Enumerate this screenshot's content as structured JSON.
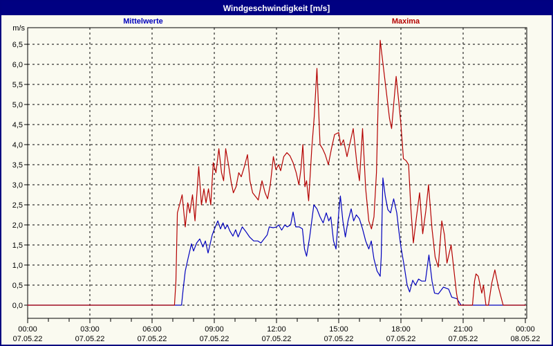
{
  "window": {
    "title": "Windgeschwindigkeit [m/s]"
  },
  "chart_data": {
    "type": "line",
    "title": "Windgeschwindigkeit [m/s]",
    "y_unit_label": "m/s",
    "ylim": [
      -0.33,
      6.93
    ],
    "xlim_hours": [
      0,
      24
    ],
    "grid": "dashed-black",
    "plot_bg": "#fafaf0",
    "axis_color": "#000000",
    "y_ticks": [
      {
        "value": 0.0,
        "label": "0,0"
      },
      {
        "value": 0.5,
        "label": "0,5"
      },
      {
        "value": 1.0,
        "label": "1,0"
      },
      {
        "value": 1.5,
        "label": "1,5"
      },
      {
        "value": 2.0,
        "label": "2,0"
      },
      {
        "value": 2.5,
        "label": "2,5"
      },
      {
        "value": 3.0,
        "label": "3,0"
      },
      {
        "value": 3.5,
        "label": "3,5"
      },
      {
        "value": 4.0,
        "label": "4,0"
      },
      {
        "value": 4.5,
        "label": "4,5"
      },
      {
        "value": 5.0,
        "label": "5,0"
      },
      {
        "value": 5.5,
        "label": "5,5"
      },
      {
        "value": 6.0,
        "label": "6,0"
      },
      {
        "value": 6.5,
        "label": "6,5"
      }
    ],
    "x_ticks": [
      {
        "hour": 0,
        "time": "00:00",
        "date": "07.05.22"
      },
      {
        "hour": 3,
        "time": "03:00",
        "date": "07.05.22"
      },
      {
        "hour": 6,
        "time": "06:00",
        "date": "07.05.22"
      },
      {
        "hour": 9,
        "time": "09:00",
        "date": "07.05.22"
      },
      {
        "hour": 12,
        "time": "12:00",
        "date": "07.05.22"
      },
      {
        "hour": 15,
        "time": "15:00",
        "date": "07.05.22"
      },
      {
        "hour": 18,
        "time": "18:00",
        "date": "07.05.22"
      },
      {
        "hour": 21,
        "time": "21:00",
        "date": "07.05.22"
      },
      {
        "hour": 24,
        "time": "00:00",
        "date": "08.05.22"
      }
    ],
    "x_minor_tick_every_hours": 1,
    "legend": [
      {
        "name": "Mittelwerte",
        "color": "#0000bd"
      },
      {
        "name": "Maxima",
        "color": "#b40000"
      }
    ],
    "series": [
      {
        "name": "Mittelwerte",
        "color": "#0000bd",
        "points": [
          [
            0,
            0
          ],
          [
            7.42,
            0
          ],
          [
            7.5,
            0.4
          ],
          [
            7.6,
            0.85
          ],
          [
            7.75,
            1.2
          ],
          [
            7.9,
            1.53
          ],
          [
            8.0,
            1.35
          ],
          [
            8.15,
            1.55
          ],
          [
            8.3,
            1.65
          ],
          [
            8.45,
            1.45
          ],
          [
            8.57,
            1.6
          ],
          [
            8.7,
            1.3
          ],
          [
            8.9,
            1.75
          ],
          [
            9.05,
            1.95
          ],
          [
            9.17,
            2.1
          ],
          [
            9.3,
            1.9
          ],
          [
            9.42,
            2.05
          ],
          [
            9.52,
            1.9
          ],
          [
            9.63,
            2.0
          ],
          [
            9.75,
            1.85
          ],
          [
            9.9,
            1.72
          ],
          [
            10.03,
            1.88
          ],
          [
            10.15,
            1.7
          ],
          [
            10.35,
            1.95
          ],
          [
            10.5,
            1.85
          ],
          [
            10.7,
            1.7
          ],
          [
            10.9,
            1.6
          ],
          [
            11.1,
            1.6
          ],
          [
            11.25,
            1.55
          ],
          [
            11.4,
            1.65
          ],
          [
            11.55,
            1.75
          ],
          [
            11.65,
            1.95
          ],
          [
            11.85,
            1.93
          ],
          [
            12.0,
            1.95
          ],
          [
            12.1,
            2.0
          ],
          [
            12.25,
            1.87
          ],
          [
            12.4,
            2.0
          ],
          [
            12.52,
            1.95
          ],
          [
            12.68,
            2.0
          ],
          [
            12.8,
            2.32
          ],
          [
            12.93,
            1.95
          ],
          [
            13.1,
            1.95
          ],
          [
            13.25,
            1.9
          ],
          [
            13.35,
            1.4
          ],
          [
            13.45,
            1.22
          ],
          [
            13.6,
            1.7
          ],
          [
            13.8,
            2.5
          ],
          [
            13.95,
            2.4
          ],
          [
            14.1,
            2.2
          ],
          [
            14.25,
            2.05
          ],
          [
            14.4,
            2.3
          ],
          [
            14.52,
            2.1
          ],
          [
            14.62,
            2.2
          ],
          [
            14.75,
            1.6
          ],
          [
            14.87,
            1.4
          ],
          [
            15.0,
            2.3
          ],
          [
            15.08,
            2.72
          ],
          [
            15.2,
            2.1
          ],
          [
            15.32,
            1.7
          ],
          [
            15.45,
            2.1
          ],
          [
            15.6,
            2.4
          ],
          [
            15.72,
            2.1
          ],
          [
            15.85,
            2.25
          ],
          [
            16.0,
            2.15
          ],
          [
            16.15,
            1.9
          ],
          [
            16.3,
            1.6
          ],
          [
            16.45,
            1.4
          ],
          [
            16.57,
            1.6
          ],
          [
            16.7,
            1.15
          ],
          [
            16.85,
            0.85
          ],
          [
            17.0,
            0.72
          ],
          [
            17.05,
            1.2
          ],
          [
            17.13,
            3.17
          ],
          [
            17.25,
            2.7
          ],
          [
            17.37,
            2.38
          ],
          [
            17.5,
            2.3
          ],
          [
            17.65,
            2.65
          ],
          [
            17.8,
            2.3
          ],
          [
            17.9,
            1.85
          ],
          [
            18.0,
            1.45
          ],
          [
            18.15,
            1.0
          ],
          [
            18.3,
            0.5
          ],
          [
            18.42,
            0.33
          ],
          [
            18.57,
            0.62
          ],
          [
            18.7,
            0.5
          ],
          [
            18.85,
            0.65
          ],
          [
            19.0,
            0.6
          ],
          [
            19.18,
            0.6
          ],
          [
            19.35,
            1.25
          ],
          [
            19.5,
            0.6
          ],
          [
            19.62,
            0.3
          ],
          [
            19.8,
            0.28
          ],
          [
            20.05,
            0.45
          ],
          [
            20.3,
            0.4
          ],
          [
            20.45,
            0.2
          ],
          [
            20.7,
            0.16
          ],
          [
            20.9,
            0
          ],
          [
            24,
            0
          ]
        ]
      },
      {
        "name": "Maxima",
        "color": "#b40000",
        "points": [
          [
            0,
            0
          ],
          [
            7.08,
            0
          ],
          [
            7.15,
            0.6
          ],
          [
            7.22,
            2.3
          ],
          [
            7.35,
            2.55
          ],
          [
            7.45,
            2.75
          ],
          [
            7.6,
            1.95
          ],
          [
            7.72,
            2.55
          ],
          [
            7.82,
            2.3
          ],
          [
            7.95,
            2.75
          ],
          [
            8.07,
            2.1
          ],
          [
            8.25,
            3.45
          ],
          [
            8.38,
            2.5
          ],
          [
            8.5,
            2.9
          ],
          [
            8.6,
            2.55
          ],
          [
            8.72,
            2.9
          ],
          [
            8.83,
            2.5
          ],
          [
            8.95,
            3.55
          ],
          [
            9.08,
            3.3
          ],
          [
            9.22,
            3.9
          ],
          [
            9.35,
            3.3
          ],
          [
            9.45,
            3.1
          ],
          [
            9.55,
            3.9
          ],
          [
            9.7,
            3.45
          ],
          [
            9.82,
            3.05
          ],
          [
            9.92,
            2.8
          ],
          [
            10.05,
            2.95
          ],
          [
            10.18,
            3.3
          ],
          [
            10.3,
            3.2
          ],
          [
            10.45,
            3.45
          ],
          [
            10.6,
            3.75
          ],
          [
            10.72,
            3.1
          ],
          [
            10.85,
            2.8
          ],
          [
            11.0,
            2.7
          ],
          [
            11.12,
            2.62
          ],
          [
            11.3,
            3.1
          ],
          [
            11.45,
            2.8
          ],
          [
            11.57,
            2.65
          ],
          [
            11.7,
            3.0
          ],
          [
            11.85,
            3.7
          ],
          [
            11.97,
            3.38
          ],
          [
            12.1,
            3.5
          ],
          [
            12.2,
            3.35
          ],
          [
            12.35,
            3.7
          ],
          [
            12.5,
            3.8
          ],
          [
            12.65,
            3.72
          ],
          [
            12.8,
            3.55
          ],
          [
            12.95,
            3.3
          ],
          [
            13.08,
            3.0
          ],
          [
            13.18,
            3.4
          ],
          [
            13.27,
            4.0
          ],
          [
            13.37,
            2.95
          ],
          [
            13.45,
            3.1
          ],
          [
            13.55,
            2.6
          ],
          [
            13.7,
            3.9
          ],
          [
            13.82,
            4.7
          ],
          [
            13.95,
            5.9
          ],
          [
            14.1,
            4.0
          ],
          [
            14.22,
            3.9
          ],
          [
            14.35,
            3.75
          ],
          [
            14.5,
            3.5
          ],
          [
            14.65,
            3.9
          ],
          [
            14.8,
            4.25
          ],
          [
            15.0,
            4.3
          ],
          [
            15.1,
            3.98
          ],
          [
            15.23,
            4.12
          ],
          [
            15.4,
            3.7
          ],
          [
            15.57,
            4.1
          ],
          [
            15.7,
            4.4
          ],
          [
            15.88,
            3.5
          ],
          [
            16.0,
            3.1
          ],
          [
            16.15,
            4.4
          ],
          [
            16.3,
            2.9
          ],
          [
            16.45,
            2.1
          ],
          [
            16.58,
            1.9
          ],
          [
            16.7,
            2.2
          ],
          [
            16.82,
            3.3
          ],
          [
            16.9,
            5.0
          ],
          [
            17.0,
            6.6
          ],
          [
            17.15,
            5.95
          ],
          [
            17.3,
            5.3
          ],
          [
            17.45,
            4.65
          ],
          [
            17.55,
            4.4
          ],
          [
            17.65,
            5.0
          ],
          [
            17.77,
            5.7
          ],
          [
            17.9,
            5.05
          ],
          [
            18.0,
            4.5
          ],
          [
            18.12,
            3.65
          ],
          [
            18.25,
            3.6
          ],
          [
            18.37,
            3.5
          ],
          [
            18.48,
            2.4
          ],
          [
            18.6,
            1.55
          ],
          [
            18.75,
            2.2
          ],
          [
            18.9,
            2.8
          ],
          [
            19.05,
            1.78
          ],
          [
            19.2,
            2.35
          ],
          [
            19.33,
            3.0
          ],
          [
            19.5,
            1.9
          ],
          [
            19.65,
            1.2
          ],
          [
            19.8,
            0.95
          ],
          [
            19.97,
            2.1
          ],
          [
            20.1,
            1.75
          ],
          [
            20.22,
            1.05
          ],
          [
            20.42,
            1.5
          ],
          [
            20.55,
            0.9
          ],
          [
            20.68,
            0.3
          ],
          [
            20.78,
            0
          ],
          [
            21.45,
            0
          ],
          [
            21.55,
            0.6
          ],
          [
            21.62,
            0.78
          ],
          [
            21.73,
            0.72
          ],
          [
            21.9,
            0.3
          ],
          [
            21.98,
            0.5
          ],
          [
            22.1,
            0
          ],
          [
            22.22,
            0
          ],
          [
            22.38,
            0.55
          ],
          [
            22.53,
            0.88
          ],
          [
            22.7,
            0.45
          ],
          [
            22.93,
            0
          ],
          [
            24,
            0
          ]
        ]
      }
    ]
  }
}
